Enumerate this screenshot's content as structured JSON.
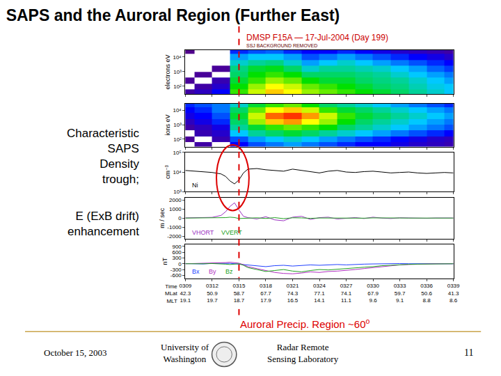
{
  "slide": {
    "title": "SAPS and the Auroral Region (Further East)",
    "page_number": "11",
    "footer_date": "October 15, 2003",
    "footer_left": [
      "University of",
      "Washington"
    ],
    "footer_right": [
      "Radar Remote",
      "Sensing Laboratory"
    ]
  },
  "notes": [
    {
      "lines": [
        "Characteristic",
        "SAPS",
        "Density",
        "trough;"
      ]
    },
    {
      "lines": [
        "E (ExB drift)",
        "enhancement"
      ]
    }
  ],
  "bottom_note": {
    "text": "Auroral Precip. Region ~60",
    "superscript": "o"
  },
  "chart_data": {
    "title": "DMSP F15A — 17-Jul-2004 (Day 199)",
    "subtitle": "SSJ BACKGROUND REMOVED",
    "xlabel": "Time",
    "xlim": [
      309,
      339
    ],
    "xticks": [
      {
        "value": 309,
        "label": "0309"
      },
      {
        "value": 312,
        "label": "0312"
      },
      {
        "value": 315,
        "label": "0315"
      },
      {
        "value": 318,
        "label": "0318"
      },
      {
        "value": 321,
        "label": "0321"
      },
      {
        "value": 324,
        "label": "0324"
      },
      {
        "value": 327,
        "label": "0327"
      },
      {
        "value": 330,
        "label": "0330"
      },
      {
        "value": 333,
        "label": "0333"
      },
      {
        "value": 336,
        "label": "0336"
      },
      {
        "value": 339,
        "label": "0339"
      }
    ],
    "tick_rows": [
      {
        "name": "MLat",
        "labels": [
          "42.3",
          "50.9",
          "58.7",
          "67.7",
          "74.3",
          "77.1",
          "74.1",
          "67.9",
          "59.7",
          "50.6",
          "41.3"
        ]
      },
      {
        "name": "MLT",
        "labels": [
          "19.1",
          "19.7",
          "18.7",
          "17.9",
          "16.5",
          "14.1",
          "11.1",
          "9.6",
          "9.1",
          "8.8",
          "8.6"
        ]
      }
    ],
    "reference_x": 315,
    "panels": [
      {
        "type": "heatmap",
        "ylabel": "electrons eV",
        "log": "y",
        "ylim": [
          30,
          30000
        ],
        "yticks": [
          {
            "value": 100,
            "label": "10²"
          },
          {
            "value": 1000,
            "label": "10³"
          },
          {
            "value": 10000,
            "label": "10⁴"
          }
        ],
        "zlim": [
          4,
          9
        ],
        "x": [
          309,
          311,
          313,
          315,
          317,
          319,
          321,
          323,
          325,
          327,
          329,
          331,
          333,
          335,
          337,
          339
        ],
        "y": [
          40,
          100,
          250,
          630,
          1600,
          4000,
          10000,
          25000
        ],
        "z": [
          [
            4.3,
            4.5,
            5.0,
            7.2,
            7.8,
            8.2,
            8.0,
            7.6,
            7.4,
            7.2,
            7.0,
            6.8,
            6.6,
            6.4,
            6.2,
            6.0
          ],
          [
            null,
            4.3,
            4.6,
            7.0,
            7.6,
            8.0,
            7.8,
            7.4,
            7.2,
            7.0,
            6.8,
            6.6,
            6.5,
            6.3,
            6.1,
            6.0
          ],
          [
            4.2,
            null,
            4.4,
            6.8,
            7.2,
            7.6,
            7.4,
            7.0,
            6.8,
            6.8,
            6.6,
            6.5,
            6.4,
            6.2,
            6.0,
            5.8
          ],
          [
            null,
            4.2,
            null,
            6.6,
            7.0,
            7.2,
            7.0,
            6.6,
            6.6,
            6.6,
            6.5,
            6.4,
            6.2,
            6.0,
            5.8,
            5.6
          ],
          [
            null,
            null,
            4.2,
            6.5,
            6.8,
            6.9,
            6.6,
            6.2,
            6.4,
            6.4,
            6.3,
            6.2,
            6.0,
            5.8,
            5.5,
            5.3
          ],
          [
            null,
            null,
            null,
            6.2,
            6.4,
            6.5,
            6.2,
            5.8,
            6.0,
            6.2,
            6.0,
            5.8,
            5.6,
            5.4,
            5.2,
            5.0
          ],
          [
            null,
            null,
            null,
            5.8,
            6.0,
            6.0,
            5.8,
            5.4,
            5.6,
            5.8,
            5.6,
            5.4,
            5.2,
            5.0,
            4.8,
            4.6
          ],
          [
            4.1,
            null,
            null,
            5.2,
            5.4,
            5.5,
            5.2,
            5.0,
            5.0,
            5.2,
            5.0,
            4.8,
            4.6,
            4.5,
            4.4,
            4.3
          ]
        ]
      },
      {
        "type": "heatmap",
        "ylabel": "ions eV",
        "log": "y",
        "ylim": [
          30,
          30000
        ],
        "yticks": [
          {
            "value": 100,
            "label": "10²"
          },
          {
            "value": 1000,
            "label": "10³"
          },
          {
            "value": 10000,
            "label": "10⁴"
          }
        ],
        "zlim": [
          4,
          9
        ],
        "x": [
          309,
          311,
          313,
          315,
          317,
          319,
          321,
          323,
          325,
          327,
          329,
          331,
          333,
          335,
          337,
          339
        ],
        "y": [
          40,
          100,
          250,
          630,
          1600,
          4000,
          10000,
          25000
        ],
        "z": [
          [
            null,
            4.3,
            null,
            5.0,
            5.4,
            5.6,
            5.8,
            5.6,
            5.4,
            5.2,
            5.0,
            5.0,
            4.8,
            4.6,
            4.5,
            4.4
          ],
          [
            4.2,
            null,
            4.4,
            5.4,
            5.8,
            6.0,
            6.2,
            6.0,
            5.8,
            5.6,
            5.4,
            5.2,
            5.0,
            4.8,
            4.6,
            4.5
          ],
          [
            null,
            4.4,
            4.6,
            6.0,
            6.4,
            6.6,
            6.8,
            6.6,
            6.4,
            6.2,
            6.0,
            5.8,
            5.6,
            5.4,
            5.2,
            5.0
          ],
          [
            4.3,
            4.5,
            4.8,
            6.4,
            6.8,
            7.2,
            7.4,
            7.2,
            7.0,
            6.6,
            6.4,
            6.2,
            6.0,
            5.8,
            5.6,
            5.4
          ],
          [
            4.5,
            4.8,
            5.2,
            6.6,
            7.6,
            8.2,
            8.4,
            8.0,
            7.6,
            7.0,
            6.6,
            6.4,
            6.2,
            6.0,
            5.8,
            5.6
          ],
          [
            4.8,
            5.0,
            5.4,
            6.8,
            7.8,
            8.6,
            8.8,
            8.4,
            7.8,
            7.2,
            6.8,
            6.6,
            6.4,
            6.2,
            6.0,
            5.8
          ],
          [
            5.0,
            5.2,
            5.6,
            6.6,
            7.4,
            8.0,
            8.2,
            7.8,
            7.2,
            6.8,
            6.6,
            6.4,
            6.2,
            6.0,
            5.8,
            5.6
          ],
          [
            5.2,
            5.4,
            5.6,
            6.2,
            6.8,
            7.2,
            7.4,
            7.0,
            6.6,
            6.4,
            6.2,
            6.0,
            5.8,
            5.6,
            5.4,
            5.2
          ]
        ]
      },
      {
        "type": "line",
        "ylabel": "cm⁻³",
        "log": "y",
        "ylim": [
          1000,
          100000
        ],
        "yticks": [
          {
            "value": 1000,
            "label": "10³"
          },
          {
            "value": 10000,
            "label": "10⁴"
          },
          {
            "value": 100000,
            "label": "10⁵"
          }
        ],
        "x": [
          309,
          310,
          311,
          312,
          313,
          313.5,
          314,
          314.5,
          315,
          315.5,
          316,
          317,
          318,
          319,
          320,
          321,
          322,
          323,
          324,
          325,
          326,
          327,
          328,
          329,
          330,
          331,
          332,
          333,
          334,
          335,
          336,
          337,
          338,
          339
        ],
        "series": [
          {
            "name": "Ni",
            "color": "#000000",
            "values": [
              12000,
              11000,
              10500,
              9500,
              8000,
              6000,
              3500,
              2500,
              4000,
              9000,
              14000,
              15000,
              13000,
              12000,
              11000,
              14000,
              12000,
              10000,
              9000,
              11000,
              12000,
              10000,
              9500,
              10500,
              11000,
              10000,
              9000,
              9500,
              10000,
              9000,
              8500,
              9000,
              9500,
              9000
            ]
          }
        ]
      },
      {
        "type": "line",
        "ylabel": "m / sec",
        "ylim": [
          -2300,
          2300
        ],
        "yticks": [
          2000,
          1000,
          0,
          -1000,
          -2000
        ],
        "x": [
          309,
          310,
          311,
          312,
          313,
          313.5,
          314,
          314.5,
          315,
          315.5,
          316,
          317,
          318,
          319,
          320,
          321,
          322,
          323,
          324,
          325,
          326,
          327,
          328,
          329,
          330,
          331,
          332,
          333,
          334,
          335,
          336,
          337,
          338,
          339
        ],
        "series": [
          {
            "name": "VHORT",
            "color": "#9a30c0",
            "values": [
              20,
              30,
              40,
              80,
              300,
              700,
              1300,
              1700,
              900,
              200,
              50,
              -100,
              150,
              -200,
              -300,
              100,
              200,
              -150,
              50,
              100,
              -100,
              0,
              50,
              -50,
              100,
              0,
              -50,
              30,
              0,
              20,
              -20,
              10,
              0,
              10
            ]
          },
          {
            "name": "VVERT",
            "color": "#20a020",
            "values": [
              0,
              10,
              -10,
              0,
              20,
              50,
              100,
              60,
              -50,
              -20,
              0,
              30,
              -40,
              50,
              -60,
              30,
              20,
              -30,
              10,
              0,
              -20,
              10,
              0,
              -10,
              20,
              0,
              -10,
              10,
              0,
              0,
              10,
              -10,
              0,
              0
            ]
          }
        ]
      },
      {
        "type": "line",
        "ylabel": "nT",
        "ylim": [
          -750,
          1000
        ],
        "yticks": [
          900,
          600,
          300,
          0,
          -300,
          -600
        ],
        "x": [
          309,
          310,
          311,
          312,
          313,
          313.5,
          314,
          314.5,
          315,
          315.5,
          316,
          317,
          318,
          319,
          320,
          321,
          322,
          323,
          324,
          325,
          326,
          327,
          328,
          329,
          330,
          331,
          332,
          333,
          334,
          335,
          336,
          337,
          338,
          339
        ],
        "series": [
          {
            "name": "Bx",
            "color": "#2040ff",
            "values": [
              10,
              0,
              -10,
              20,
              30,
              40,
              20,
              0,
              -20,
              -60,
              -80,
              -120,
              -150,
              -100,
              -80,
              -120,
              -100,
              -60,
              -80,
              -50,
              -40,
              -60,
              -30,
              -20,
              -10,
              0,
              -10,
              10,
              0,
              0,
              10,
              0,
              -10,
              0
            ]
          },
          {
            "name": "By",
            "color": "#b030c0",
            "values": [
              0,
              10,
              20,
              30,
              40,
              60,
              80,
              50,
              30,
              -50,
              -150,
              -250,
              -350,
              -450,
              -500,
              -520,
              -480,
              -420,
              -450,
              -400,
              -380,
              -350,
              -300,
              -250,
              -200,
              -150,
              -100,
              -60,
              -40,
              -20,
              -10,
              0,
              0,
              0
            ]
          },
          {
            "name": "Bz",
            "color": "#20a020",
            "values": [
              0,
              -10,
              0,
              10,
              0,
              -20,
              -40,
              -20,
              0,
              -80,
              -200,
              -300,
              -400,
              -350,
              -300,
              -380,
              -420,
              -350,
              -300,
              -320,
              -280,
              -250,
              -220,
              -180,
              -150,
              -100,
              -80,
              -50,
              -30,
              -20,
              -10,
              0,
              0,
              0
            ]
          }
        ]
      }
    ]
  }
}
